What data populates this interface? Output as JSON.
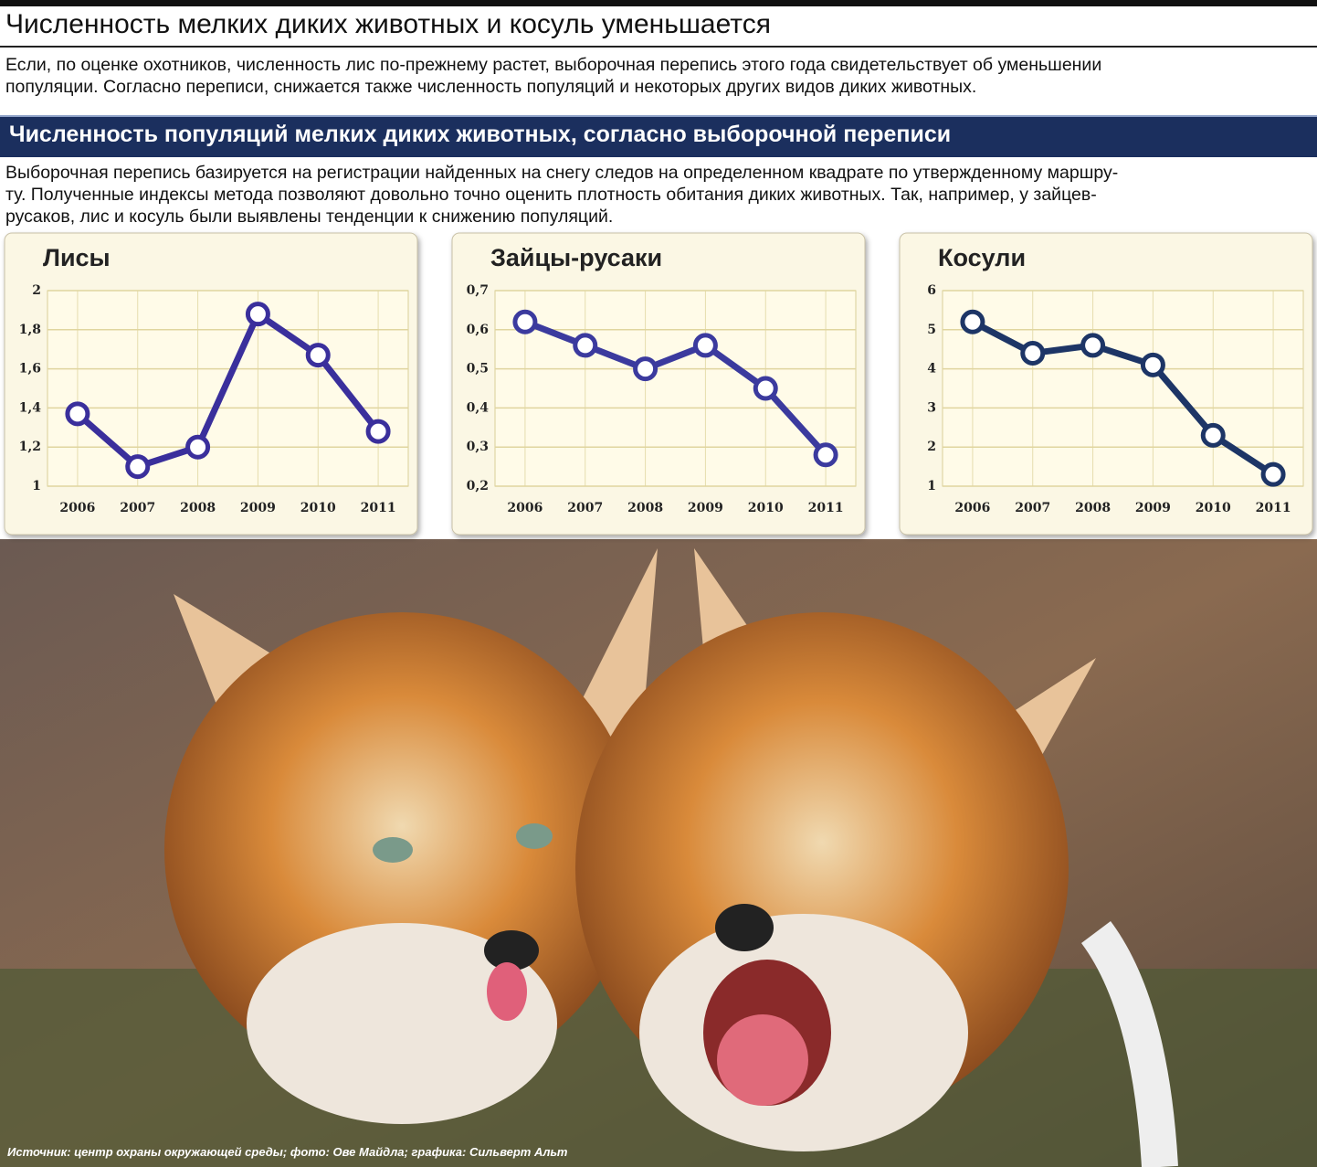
{
  "headline": "Численность мелких диких животных и косуль уменьшается",
  "intro": [
    "Если, по оценке охотников, численность лис по-прежнему растет, выборочная перепись этого года свидетельствует об уменьшении",
    "популяции. Согласно переписи, снижается также численность популяций и некоторых других видов диких животных."
  ],
  "section_title": "Численность популяций мелких диких животных, согласно выборочной переписи",
  "description": [
    "Выборочная перепись базируется на регистрации найденных на снегу следов на определенном квадрате по утвержденному маршру-",
    "ту. Полученные индексы метода позволяют довольно точно оценить плотность обитания диких животных. Так, например, у зайцев-",
    "русаков, лис и косуль были выявлены тенденции к снижению популяций."
  ],
  "source": "Источник: центр охраны окружающей среды; фото: Ове Майдла; графика: Сильверт Альт",
  "chart_data": [
    {
      "type": "line",
      "title": "Лисы",
      "categories": [
        "2006",
        "2007",
        "2008",
        "2009",
        "2010",
        "2011"
      ],
      "values": [
        1.37,
        1.1,
        1.2,
        1.88,
        1.67,
        1.28
      ],
      "color": "#3a2f9c",
      "ylim": [
        1,
        2
      ],
      "yticks": [
        1,
        {
          "value": 1.2,
          "label": "1,2"
        },
        {
          "value": 1.4,
          "label": "1,4"
        },
        {
          "value": 1.6,
          "label": "1,6"
        },
        {
          "value": 1.8,
          "label": "1,8"
        },
        2
      ],
      "grid": true
    },
    {
      "type": "line",
      "title": "Зайцы-русаки",
      "categories": [
        "2006",
        "2007",
        "2008",
        "2009",
        "2010",
        "2011"
      ],
      "values": [
        0.62,
        0.56,
        0.5,
        0.56,
        0.45,
        0.28
      ],
      "color": "#3b3a9e",
      "ylim": [
        0.2,
        0.7
      ],
      "yticks": [
        {
          "value": 0.2,
          "label": "0,2"
        },
        {
          "value": 0.3,
          "label": "0,3"
        },
        {
          "value": 0.4,
          "label": "0,4"
        },
        {
          "value": 0.5,
          "label": "0,5"
        },
        {
          "value": 0.6,
          "label": "0,6"
        },
        {
          "value": 0.7,
          "label": "0,7"
        }
      ],
      "grid": true
    },
    {
      "type": "line",
      "title": "Косули",
      "categories": [
        "2006",
        "2007",
        "2008",
        "2009",
        "2010",
        "2011"
      ],
      "values": [
        5.2,
        4.4,
        4.6,
        4.1,
        2.3,
        1.3
      ],
      "color": "#1d3566",
      "ylim": [
        1,
        6
      ],
      "yticks": [
        1,
        2,
        3,
        4,
        5,
        6
      ],
      "grid": true
    }
  ]
}
